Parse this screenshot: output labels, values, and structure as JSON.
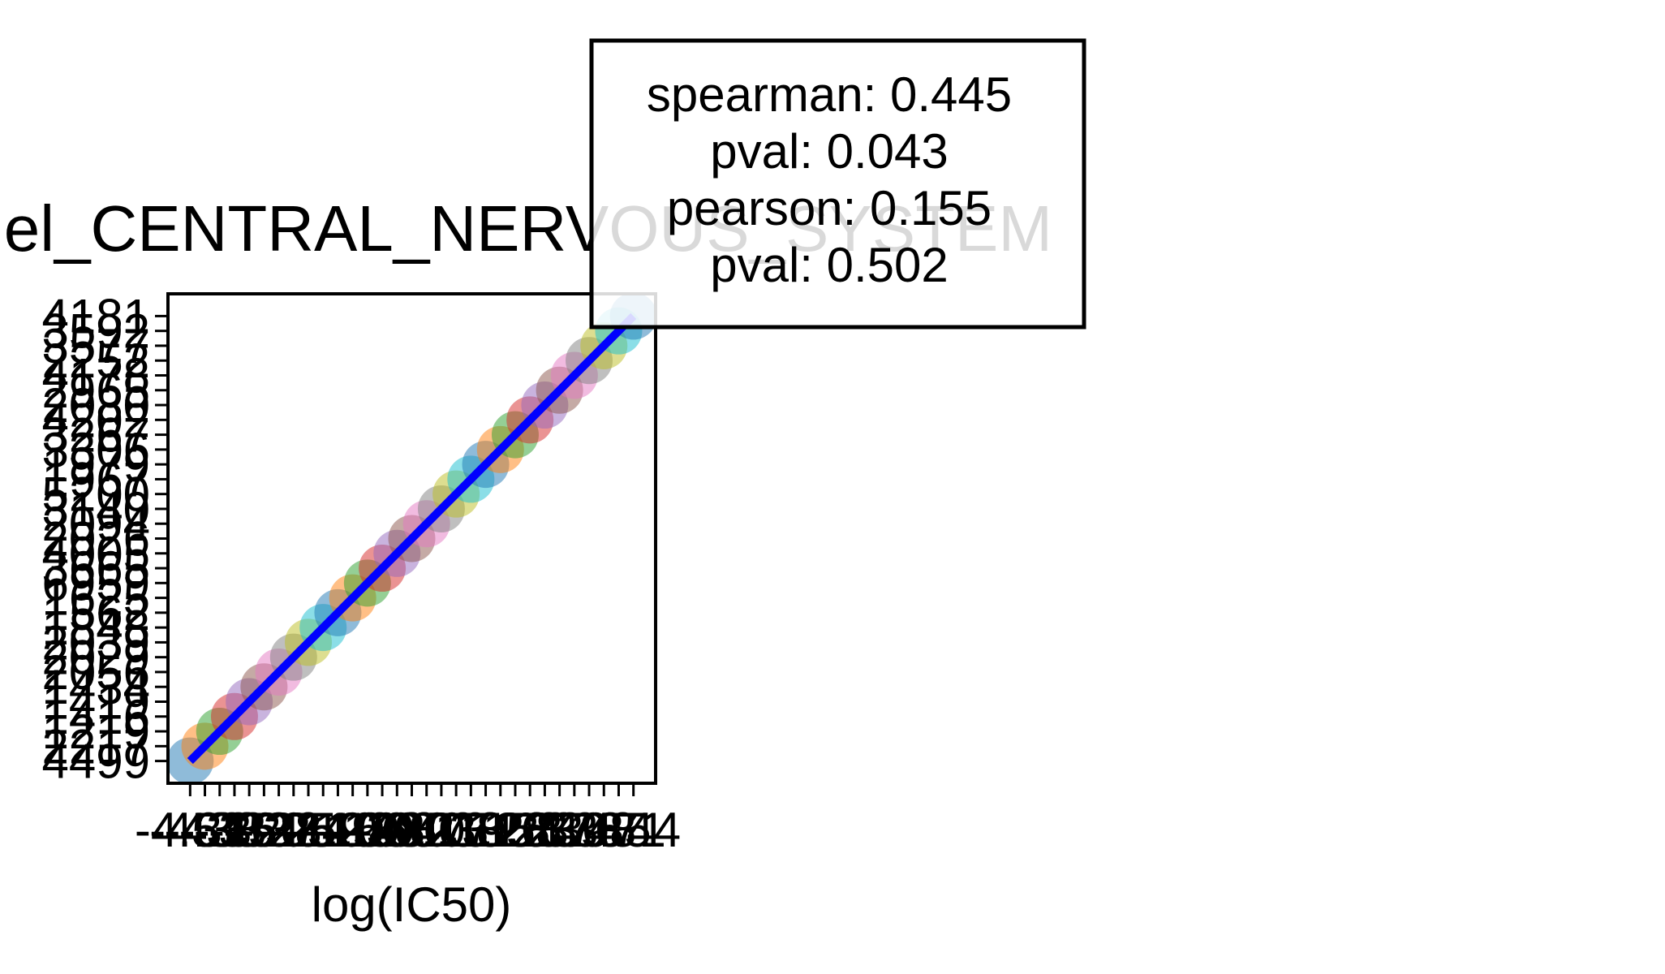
{
  "chart_data": {
    "type": "scatter",
    "title": "el_CENTRAL_NERVOUS_SYSTEM",
    "xlabel": "log(IC50)",
    "x": [
      "-4.53",
      "-4.38",
      "-4.15",
      "-3.92",
      "-3.61",
      "-3.37",
      "-3.05",
      "-2.84",
      "-2.52",
      "-2.19",
      "-1.93",
      "-1.66",
      "-1.40",
      "-1.08",
      "-0.82",
      "-0.47",
      "-0.21",
      "0.13",
      "0.38",
      "0.71",
      "0.95",
      "1.26",
      "1.58",
      "1.83",
      "2.17",
      "2.49",
      "2.76",
      "3.08",
      "3.35",
      "3.71",
      "4.44"
    ],
    "y": [
      "4499",
      "2217",
      "1219",
      "1416",
      "1419",
      "1434",
      "2056",
      "2029",
      "2039",
      "1848",
      "1562",
      "1625",
      "6959",
      "3665",
      "4005",
      "2026",
      "2094",
      "3140",
      "5200",
      "1967",
      "1979",
      "3306",
      "3267",
      "4202",
      "2080",
      "2965",
      "4178",
      "2252",
      "3577",
      "3592",
      "4181"
    ],
    "colors": [
      "#1f77b4",
      "#ff7f0e",
      "#2ca02c",
      "#d62728",
      "#9467bd",
      "#8c564b",
      "#e377c2",
      "#7f7f7f",
      "#bcbd22",
      "#17becf"
    ],
    "fit_line_color": "#0000ff",
    "annotation": [
      "spearman: 0.445",
      "pval: 0.043",
      "pearson: 0.155",
      "pval: 0.502"
    ]
  }
}
